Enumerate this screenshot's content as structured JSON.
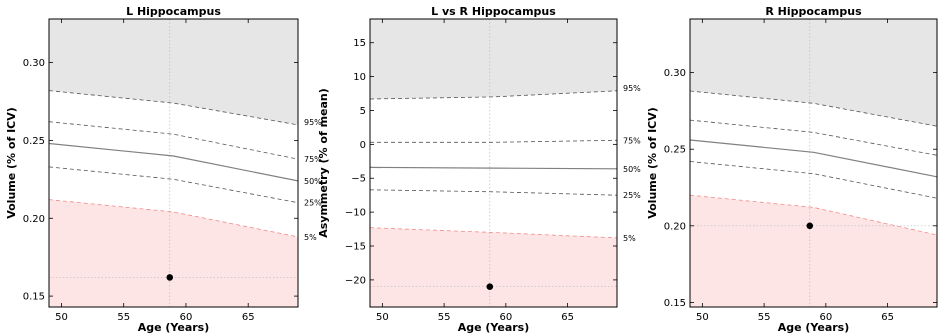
{
  "colors": {
    "upper_fill": "#e6e6e6",
    "lower_fill": "#fde5e5",
    "outlier_band_line": "#f28b8b",
    "percentile_line": "#555555",
    "median_line": "#808080",
    "crosshair": "#bbbbbb",
    "point": "#000000"
  },
  "chart_data": [
    {
      "type": "line",
      "title": "L Hippocampus",
      "xlabel": "Age (Years)",
      "ylabel": "Volume (% of ICV)",
      "xlim": [
        49,
        69
      ],
      "ylim": [
        0.143,
        0.328
      ],
      "xticks": [
        "50",
        "55",
        "60",
        "65"
      ],
      "xtick_values": [
        50,
        55,
        60,
        65
      ],
      "yticks": [
        "0.15",
        "0.20",
        "0.25",
        "0.30"
      ],
      "ytick_values": [
        0.15,
        0.2,
        0.25,
        0.3
      ],
      "x": [
        49,
        59,
        69
      ],
      "series": [
        {
          "name": "95%",
          "values": [
            0.282,
            0.274,
            0.26
          ],
          "style": "dashed",
          "upper_band": true
        },
        {
          "name": "75%",
          "values": [
            0.262,
            0.254,
            0.238
          ],
          "style": "dashed"
        },
        {
          "name": "50%",
          "values": [
            0.248,
            0.24,
            0.224
          ],
          "style": "solid"
        },
        {
          "name": "25%",
          "values": [
            0.233,
            0.225,
            0.21
          ],
          "style": "dashed"
        },
        {
          "name": "5%",
          "values": [
            0.212,
            0.204,
            0.188
          ],
          "style": "dashed",
          "lower_band": true
        }
      ],
      "subject": {
        "x": 58.7,
        "y": 0.162
      },
      "grid": false
    },
    {
      "type": "line",
      "title": "L vs R Hippocampus",
      "xlabel": "Age (Years)",
      "ylabel": "Asymmetry (% of mean)",
      "xlim": [
        49,
        69
      ],
      "ylim": [
        -24,
        18.5
      ],
      "xticks": [
        "50",
        "55",
        "60",
        "65"
      ],
      "xtick_values": [
        50,
        55,
        60,
        65
      ],
      "yticks": [
        "−20",
        "−15",
        "−10",
        "−5",
        "0",
        "5",
        "10",
        "15"
      ],
      "ytick_values": [
        -20,
        -15,
        -10,
        -5,
        0,
        5,
        10,
        15
      ],
      "x": [
        49,
        59,
        69
      ],
      "series": [
        {
          "name": "95%",
          "values": [
            6.7,
            7.0,
            7.9
          ],
          "style": "dashed",
          "upper_band": true
        },
        {
          "name": "75%",
          "values": [
            0.3,
            0.3,
            0.6
          ],
          "style": "dashed"
        },
        {
          "name": "50%",
          "values": [
            -3.4,
            -3.5,
            -3.6
          ],
          "style": "solid"
        },
        {
          "name": "25%",
          "values": [
            -6.7,
            -7.0,
            -7.5
          ],
          "style": "dashed"
        },
        {
          "name": "5%",
          "values": [
            -12.3,
            -13.0,
            -13.8
          ],
          "style": "dashed",
          "lower_band": true
        }
      ],
      "subject": {
        "x": 58.7,
        "y": -21.0
      },
      "grid": false
    },
    {
      "type": "line",
      "title": "R Hippocampus",
      "xlabel": "Age (Years)",
      "ylabel": "Volume (% of ICV)",
      "xlim": [
        49,
        69
      ],
      "ylim": [
        0.147,
        0.335
      ],
      "xticks": [
        "50",
        "55",
        "60",
        "65"
      ],
      "xtick_values": [
        50,
        55,
        60,
        65
      ],
      "yticks": [
        "0.15",
        "0.20",
        "0.25",
        "0.30"
      ],
      "ytick_values": [
        0.15,
        0.2,
        0.25,
        0.3
      ],
      "x": [
        49,
        59,
        69
      ],
      "series": [
        {
          "name": "95%",
          "values": [
            0.288,
            0.28,
            0.265
          ],
          "style": "dashed",
          "upper_band": true
        },
        {
          "name": "75%",
          "values": [
            0.269,
            0.261,
            0.246
          ],
          "style": "dashed"
        },
        {
          "name": "50%",
          "values": [
            0.256,
            0.248,
            0.232
          ],
          "style": "solid"
        },
        {
          "name": "25%",
          "values": [
            0.242,
            0.234,
            0.218
          ],
          "style": "dashed"
        },
        {
          "name": "5%",
          "values": [
            0.22,
            0.212,
            0.194
          ],
          "style": "dashed",
          "lower_band": true
        }
      ],
      "subject": {
        "x": 58.7,
        "y": 0.2
      },
      "grid": false
    }
  ]
}
